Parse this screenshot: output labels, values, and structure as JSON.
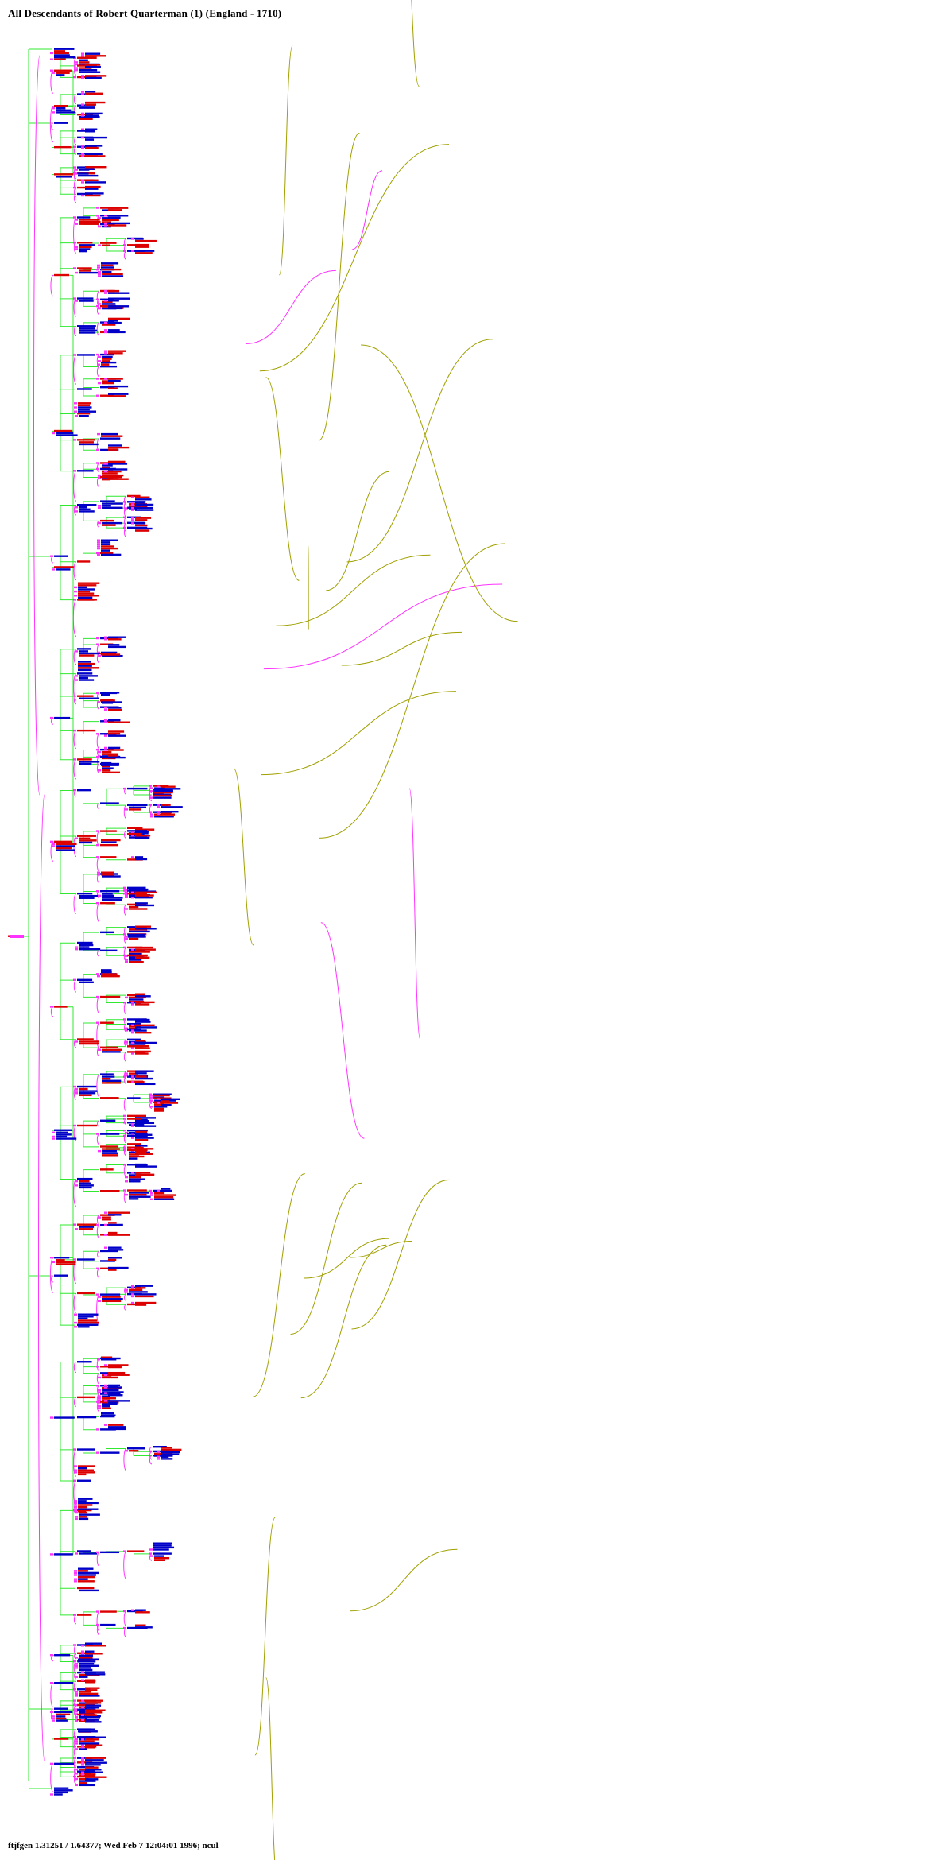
{
  "title": "All Descendants of Robert Quarterman (1) (England - 1710)",
  "footer": "ftjfgen 1.31251 / 1.64377; Wed Feb  7 12:04:01 1996; ncul",
  "colors": {
    "descent_line": "#2fe82f",
    "spouse_line": "#ff33ff",
    "cross_line": "#a0a000",
    "male_label": "#0000c8",
    "female_label": "#dd0000",
    "background": "#ffffff"
  },
  "legend": {
    "root_box": "root-person-icon"
  }
}
